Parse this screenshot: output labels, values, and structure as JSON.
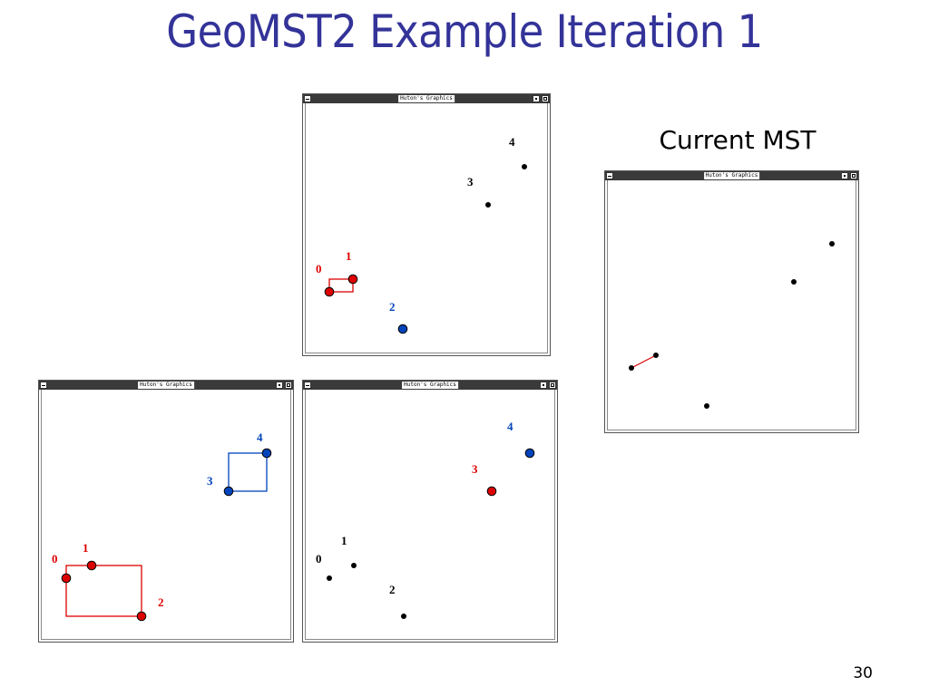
{
  "slide": {
    "title": "GeoMST2 Example Iteration 1",
    "caption": "Current MST",
    "page_number": "30"
  },
  "colors": {
    "title": "#333399",
    "red": "#dd0000",
    "blue": "#0044bb",
    "black": "#000000"
  },
  "window_title": "Huton's Graphics",
  "windows": {
    "top": {
      "name": "partition-window-top",
      "points": [
        {
          "id": 0,
          "label": "0",
          "color": "red",
          "style": "circle"
        },
        {
          "id": 1,
          "label": "1",
          "color": "red",
          "style": "circle"
        },
        {
          "id": 2,
          "label": "2",
          "color": "blue",
          "style": "circle"
        },
        {
          "id": 3,
          "label": "3",
          "color": "black",
          "style": "dot"
        },
        {
          "id": 4,
          "label": "4",
          "color": "black",
          "style": "dot"
        }
      ]
    },
    "bottom_left": {
      "name": "partition-window-bottom-left",
      "points": [
        {
          "id": 0,
          "label": "0",
          "color": "red",
          "style": "circle"
        },
        {
          "id": 1,
          "label": "1",
          "color": "red",
          "style": "circle"
        },
        {
          "id": 2,
          "label": "2",
          "color": "red",
          "style": "circle"
        },
        {
          "id": 3,
          "label": "3",
          "color": "blue",
          "style": "circle"
        },
        {
          "id": 4,
          "label": "4",
          "color": "blue",
          "style": "circle"
        }
      ]
    },
    "bottom_right": {
      "name": "partition-window-bottom-right",
      "points": [
        {
          "id": 0,
          "label": "0",
          "color": "black",
          "style": "dot"
        },
        {
          "id": 1,
          "label": "1",
          "color": "black",
          "style": "dot"
        },
        {
          "id": 2,
          "label": "2",
          "color": "black",
          "style": "dot"
        },
        {
          "id": 3,
          "label": "3",
          "color": "red",
          "style": "circle"
        },
        {
          "id": 4,
          "label": "4",
          "color": "blue",
          "style": "circle"
        }
      ]
    },
    "mst": {
      "name": "current-mst-window",
      "points": [
        {
          "id": 0,
          "label": "",
          "color": "black",
          "style": "dot"
        },
        {
          "id": 1,
          "label": "",
          "color": "black",
          "style": "dot"
        },
        {
          "id": 2,
          "label": "",
          "color": "black",
          "style": "dot"
        },
        {
          "id": 3,
          "label": "",
          "color": "black",
          "style": "dot"
        },
        {
          "id": 4,
          "label": "",
          "color": "black",
          "style": "dot"
        }
      ],
      "mst_edges": [
        [
          0,
          1
        ]
      ]
    }
  }
}
